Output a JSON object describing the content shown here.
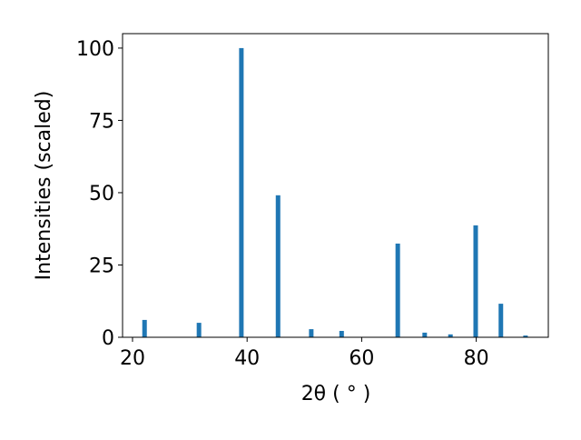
{
  "chart_data": {
    "type": "bar",
    "xlabel": "2θ ( ° )",
    "ylabel": "Intensities (scaled)",
    "x": [
      22.1,
      31.6,
      39.0,
      45.4,
      51.2,
      56.5,
      66.3,
      71.0,
      75.5,
      79.9,
      84.3,
      88.6
    ],
    "values": [
      6.0,
      5.0,
      100,
      49.1,
      2.8,
      2.2,
      32.4,
      1.6,
      1.0,
      38.7,
      11.6,
      0.6
    ],
    "color": "#1f77b4",
    "xlim": [
      18.26,
      92.58
    ],
    "xticks": [
      20,
      40,
      60,
      80
    ],
    "ylim": [
      0,
      105
    ],
    "yticks": [
      0,
      25,
      50,
      75,
      100
    ]
  }
}
